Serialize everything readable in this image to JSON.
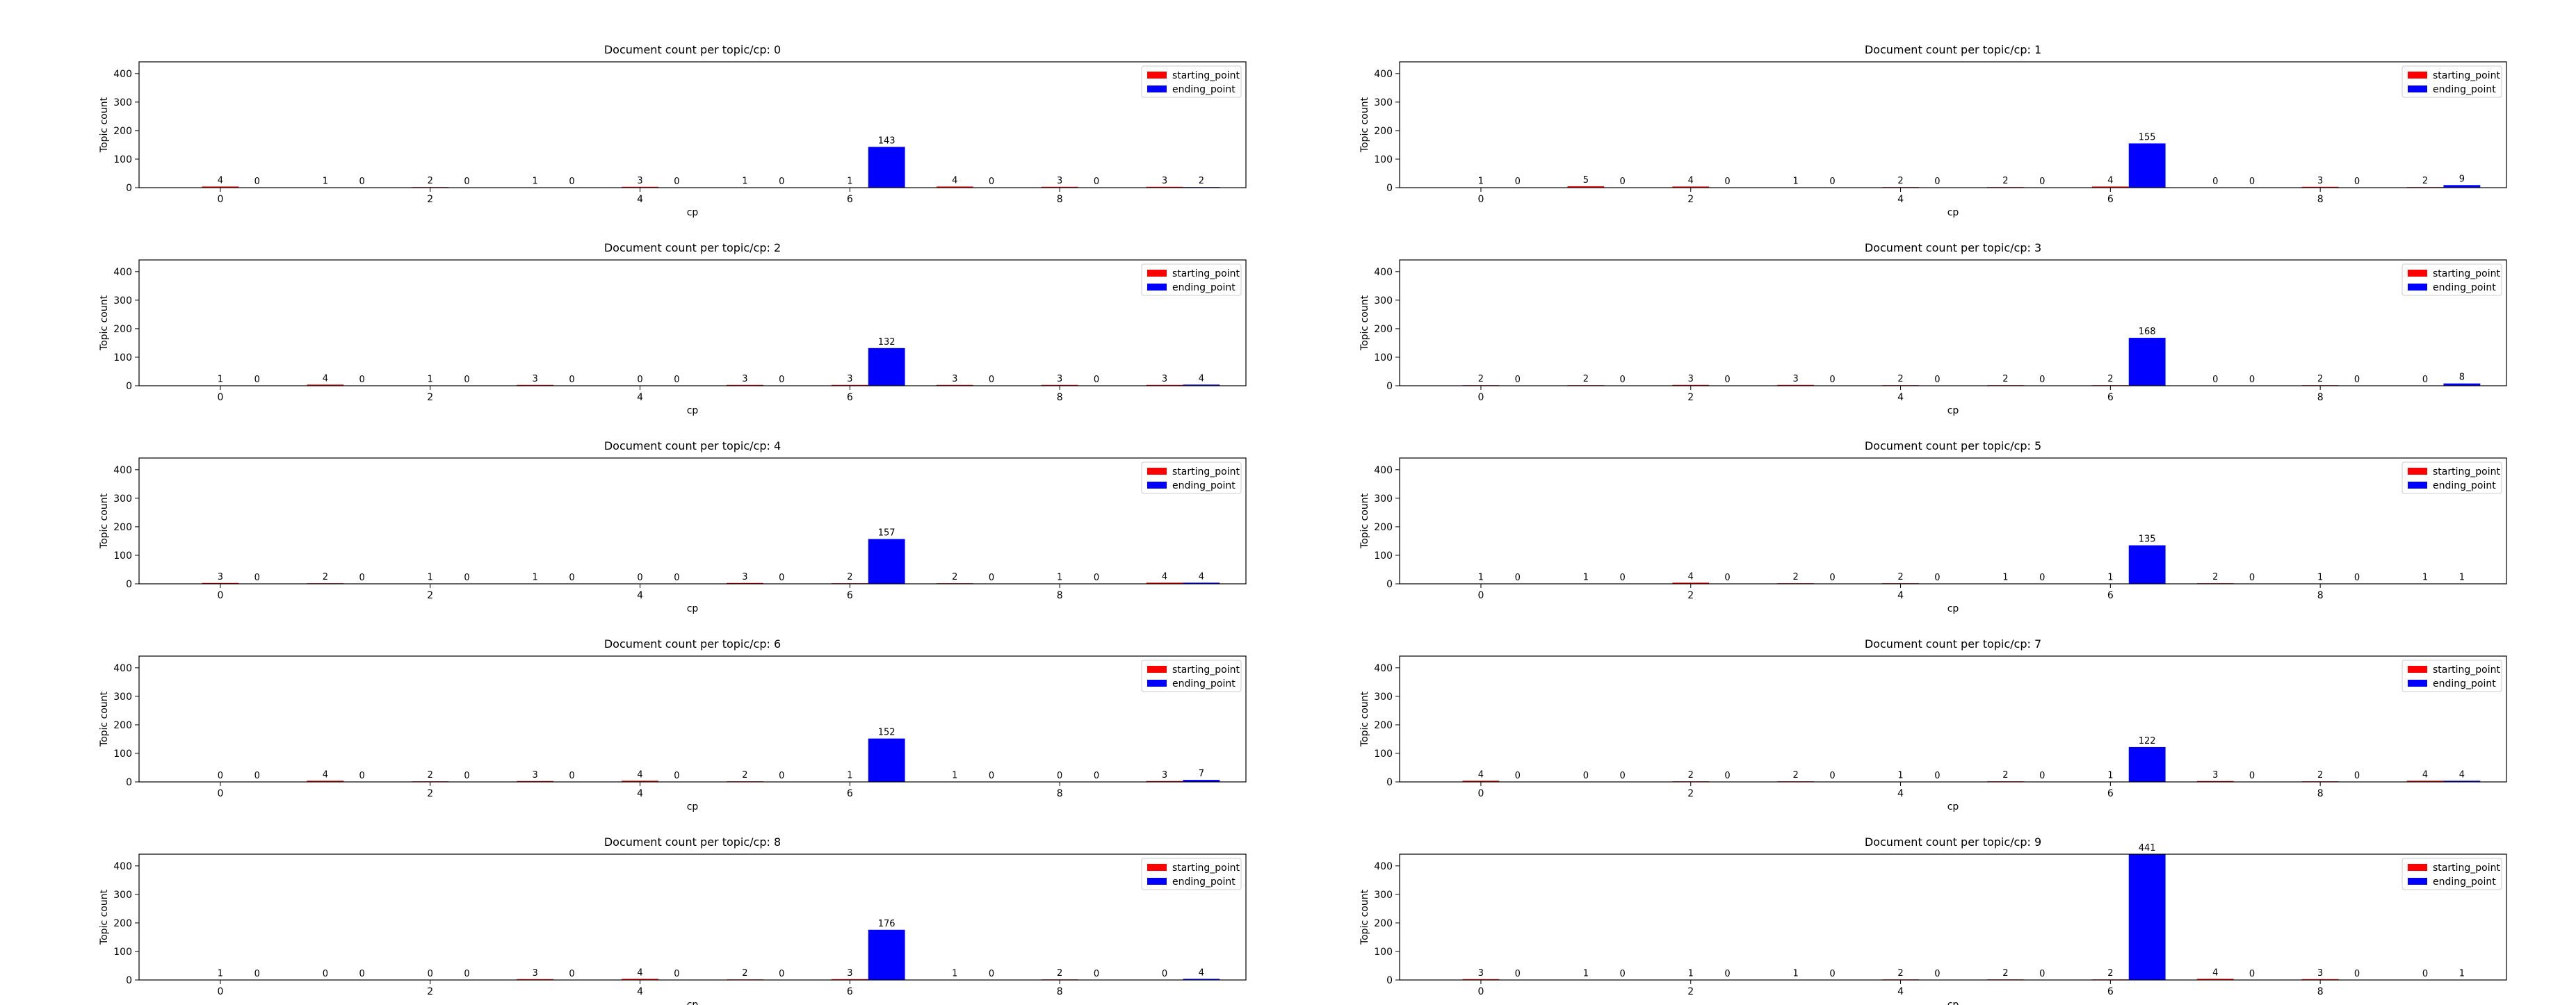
{
  "figure": {
    "background": "#ffffff"
  },
  "chart_data": [
    {
      "type": "bar",
      "title": "Document count per topic/cp: 0",
      "xlabel": "cp",
      "ylabel": "Topic count",
      "ylim": [
        0,
        441
      ],
      "yticks": [
        0,
        100,
        200,
        300,
        400
      ],
      "xticks": [
        0,
        2,
        4,
        6,
        8
      ],
      "categories": [
        0,
        1,
        2,
        3,
        4,
        5,
        6,
        7,
        8,
        9
      ],
      "legend": "top-right",
      "series": [
        {
          "name": "starting_point",
          "color": "#ff0000",
          "values": [
            4,
            1,
            2,
            1,
            3,
            1,
            1,
            4,
            3,
            3
          ]
        },
        {
          "name": "ending_point",
          "color": "#0000ff",
          "values": [
            0,
            0,
            0,
            0,
            0,
            0,
            143,
            0,
            0,
            2
          ]
        }
      ]
    },
    {
      "type": "bar",
      "title": "Document count per topic/cp: 1",
      "xlabel": "cp",
      "ylabel": "Topic count",
      "ylim": [
        0,
        441
      ],
      "yticks": [
        0,
        100,
        200,
        300,
        400
      ],
      "xticks": [
        0,
        2,
        4,
        6,
        8
      ],
      "categories": [
        0,
        1,
        2,
        3,
        4,
        5,
        6,
        7,
        8,
        9
      ],
      "legend": "top-right",
      "series": [
        {
          "name": "starting_point",
          "color": "#ff0000",
          "values": [
            1,
            5,
            4,
            1,
            2,
            2,
            4,
            0,
            3,
            2
          ]
        },
        {
          "name": "ending_point",
          "color": "#0000ff",
          "values": [
            0,
            0,
            0,
            0,
            0,
            0,
            155,
            0,
            0,
            9
          ]
        }
      ]
    },
    {
      "type": "bar",
      "title": "Document count per topic/cp: 2",
      "xlabel": "cp",
      "ylabel": "Topic count",
      "ylim": [
        0,
        441
      ],
      "yticks": [
        0,
        100,
        200,
        300,
        400
      ],
      "xticks": [
        0,
        2,
        4,
        6,
        8
      ],
      "categories": [
        0,
        1,
        2,
        3,
        4,
        5,
        6,
        7,
        8,
        9
      ],
      "legend": "top-right",
      "series": [
        {
          "name": "starting_point",
          "color": "#ff0000",
          "values": [
            1,
            4,
            1,
            3,
            0,
            3,
            3,
            3,
            3,
            3
          ]
        },
        {
          "name": "ending_point",
          "color": "#0000ff",
          "values": [
            0,
            0,
            0,
            0,
            0,
            0,
            132,
            0,
            0,
            4
          ]
        }
      ]
    },
    {
      "type": "bar",
      "title": "Document count per topic/cp: 3",
      "xlabel": "cp",
      "ylabel": "Topic count",
      "ylim": [
        0,
        441
      ],
      "yticks": [
        0,
        100,
        200,
        300,
        400
      ],
      "xticks": [
        0,
        2,
        4,
        6,
        8
      ],
      "categories": [
        0,
        1,
        2,
        3,
        4,
        5,
        6,
        7,
        8,
        9
      ],
      "legend": "top-right",
      "series": [
        {
          "name": "starting_point",
          "color": "#ff0000",
          "values": [
            2,
            2,
            3,
            3,
            2,
            2,
            2,
            0,
            2,
            0
          ]
        },
        {
          "name": "ending_point",
          "color": "#0000ff",
          "values": [
            0,
            0,
            0,
            0,
            0,
            0,
            168,
            0,
            0,
            8
          ]
        }
      ]
    },
    {
      "type": "bar",
      "title": "Document count per topic/cp: 4",
      "xlabel": "cp",
      "ylabel": "Topic count",
      "ylim": [
        0,
        441
      ],
      "yticks": [
        0,
        100,
        200,
        300,
        400
      ],
      "xticks": [
        0,
        2,
        4,
        6,
        8
      ],
      "categories": [
        0,
        1,
        2,
        3,
        4,
        5,
        6,
        7,
        8,
        9
      ],
      "legend": "top-right",
      "series": [
        {
          "name": "starting_point",
          "color": "#ff0000",
          "values": [
            3,
            2,
            1,
            1,
            0,
            3,
            2,
            2,
            1,
            4
          ]
        },
        {
          "name": "ending_point",
          "color": "#0000ff",
          "values": [
            0,
            0,
            0,
            0,
            0,
            0,
            157,
            0,
            0,
            4
          ]
        }
      ]
    },
    {
      "type": "bar",
      "title": "Document count per topic/cp: 5",
      "xlabel": "cp",
      "ylabel": "Topic count",
      "ylim": [
        0,
        441
      ],
      "yticks": [
        0,
        100,
        200,
        300,
        400
      ],
      "xticks": [
        0,
        2,
        4,
        6,
        8
      ],
      "categories": [
        0,
        1,
        2,
        3,
        4,
        5,
        6,
        7,
        8,
        9
      ],
      "legend": "top-right",
      "series": [
        {
          "name": "starting_point",
          "color": "#ff0000",
          "values": [
            1,
            1,
            4,
            2,
            2,
            1,
            1,
            2,
            1,
            1
          ]
        },
        {
          "name": "ending_point",
          "color": "#0000ff",
          "values": [
            0,
            0,
            0,
            0,
            0,
            0,
            135,
            0,
            0,
            1
          ]
        }
      ]
    },
    {
      "type": "bar",
      "title": "Document count per topic/cp: 6",
      "xlabel": "cp",
      "ylabel": "Topic count",
      "ylim": [
        0,
        441
      ],
      "yticks": [
        0,
        100,
        200,
        300,
        400
      ],
      "xticks": [
        0,
        2,
        4,
        6,
        8
      ],
      "categories": [
        0,
        1,
        2,
        3,
        4,
        5,
        6,
        7,
        8,
        9
      ],
      "legend": "top-right",
      "series": [
        {
          "name": "starting_point",
          "color": "#ff0000",
          "values": [
            0,
            4,
            2,
            3,
            4,
            2,
            1,
            1,
            0,
            3
          ]
        },
        {
          "name": "ending_point",
          "color": "#0000ff",
          "values": [
            0,
            0,
            0,
            0,
            0,
            0,
            152,
            0,
            0,
            7
          ]
        }
      ]
    },
    {
      "type": "bar",
      "title": "Document count per topic/cp: 7",
      "xlabel": "cp",
      "ylabel": "Topic count",
      "ylim": [
        0,
        441
      ],
      "yticks": [
        0,
        100,
        200,
        300,
        400
      ],
      "xticks": [
        0,
        2,
        4,
        6,
        8
      ],
      "categories": [
        0,
        1,
        2,
        3,
        4,
        5,
        6,
        7,
        8,
        9
      ],
      "legend": "top-right",
      "series": [
        {
          "name": "starting_point",
          "color": "#ff0000",
          "values": [
            4,
            0,
            2,
            2,
            1,
            2,
            1,
            3,
            2,
            4
          ]
        },
        {
          "name": "ending_point",
          "color": "#0000ff",
          "values": [
            0,
            0,
            0,
            0,
            0,
            0,
            122,
            0,
            0,
            4
          ]
        }
      ]
    },
    {
      "type": "bar",
      "title": "Document count per topic/cp: 8",
      "xlabel": "cp",
      "ylabel": "Topic count",
      "ylim": [
        0,
        441
      ],
      "yticks": [
        0,
        100,
        200,
        300,
        400
      ],
      "xticks": [
        0,
        2,
        4,
        6,
        8
      ],
      "categories": [
        0,
        1,
        2,
        3,
        4,
        5,
        6,
        7,
        8,
        9
      ],
      "legend": "top-right",
      "series": [
        {
          "name": "starting_point",
          "color": "#ff0000",
          "values": [
            1,
            0,
            0,
            3,
            4,
            2,
            3,
            1,
            2,
            0
          ]
        },
        {
          "name": "ending_point",
          "color": "#0000ff",
          "values": [
            0,
            0,
            0,
            0,
            0,
            0,
            176,
            0,
            0,
            4
          ]
        }
      ]
    },
    {
      "type": "bar",
      "title": "Document count per topic/cp: 9",
      "xlabel": "cp",
      "ylabel": "Topic count",
      "ylim": [
        0,
        441
      ],
      "yticks": [
        0,
        100,
        200,
        300,
        400
      ],
      "xticks": [
        0,
        2,
        4,
        6,
        8
      ],
      "categories": [
        0,
        1,
        2,
        3,
        4,
        5,
        6,
        7,
        8,
        9
      ],
      "legend": "top-right",
      "series": [
        {
          "name": "starting_point",
          "color": "#ff0000",
          "values": [
            3,
            1,
            1,
            1,
            2,
            2,
            2,
            4,
            3,
            0
          ]
        },
        {
          "name": "ending_point",
          "color": "#0000ff",
          "values": [
            0,
            0,
            0,
            0,
            0,
            0,
            441,
            0,
            0,
            1
          ]
        }
      ]
    }
  ]
}
